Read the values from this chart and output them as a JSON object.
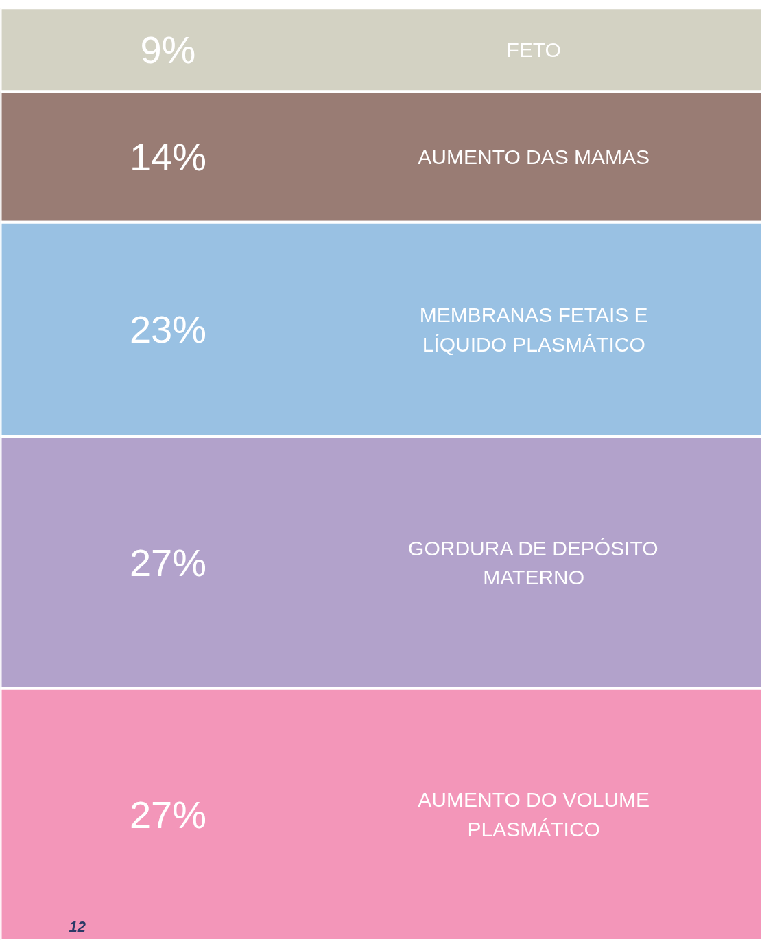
{
  "chart_data": {
    "type": "other",
    "categories": [
      "FETO",
      "AUMENTO DAS MAMAS",
      "MEMBRANAS FETAIS E\nLÍQUIDO PLASMÁTICO",
      "GORDURA DE DEPÓSITO\nMATERNO",
      "AUMENTO DO VOLUME\nPLASMÁTICO"
    ],
    "values": [
      9,
      14,
      23,
      27,
      27
    ],
    "value_labels": [
      "9%",
      "14%",
      "23%",
      "27%",
      "27%"
    ],
    "colors": [
      "#d3d2c3",
      "#997c74",
      "#99c1e3",
      "#b2a2cb",
      "#f396b9"
    ],
    "annotations": [
      "12"
    ]
  }
}
